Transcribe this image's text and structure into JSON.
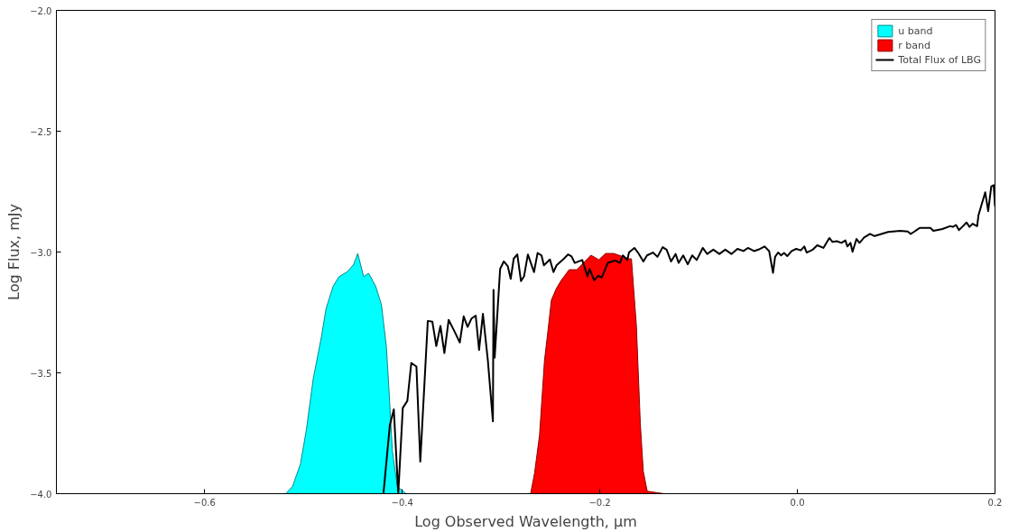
{
  "chart_data": {
    "type": "line",
    "xlabel": "Log Observed Wavelength, μm",
    "ylabel": "Log Flux, mJy",
    "xlim": [
      -0.75,
      0.2
    ],
    "ylim": [
      -4.0,
      -2.0
    ],
    "xticks": [
      {
        "value": -0.6,
        "label": "−0.6"
      },
      {
        "value": -0.4,
        "label": "−0.4"
      },
      {
        "value": -0.2,
        "label": "−0.2"
      },
      {
        "value": 0.0,
        "label": "0.0"
      },
      {
        "value": 0.2,
        "label": "0.2"
      }
    ],
    "yticks": [
      {
        "value": -4.0,
        "label": "−4.0"
      },
      {
        "value": -3.5,
        "label": "−3.5"
      },
      {
        "value": -3.0,
        "label": "−3.0"
      },
      {
        "value": -2.5,
        "label": "−2.5"
      },
      {
        "value": -2.0,
        "label": "−2.0"
      }
    ],
    "grid": false,
    "legend": "top right",
    "series": [
      {
        "name": "u band",
        "type": "area",
        "color": "#00ffff",
        "x": [
          -0.518,
          -0.511,
          -0.503,
          -0.497,
          -0.49,
          -0.482,
          -0.477,
          -0.47,
          -0.464,
          -0.455,
          -0.449,
          -0.445,
          -0.439,
          -0.434,
          -0.427,
          -0.421,
          -0.416,
          -0.413,
          -0.41,
          -0.405,
          -0.396
        ],
        "values": [
          -4.0,
          -3.97,
          -3.877,
          -3.736,
          -3.523,
          -3.356,
          -3.233,
          -3.143,
          -3.102,
          -3.08,
          -3.05,
          -3.006,
          -3.102,
          -3.088,
          -3.14,
          -3.218,
          -3.393,
          -3.598,
          -3.821,
          -3.97,
          -4.0
        ]
      },
      {
        "name": "r band",
        "type": "area",
        "color": "#ff0000",
        "x": [
          -0.27,
          -0.266,
          -0.261,
          -0.256,
          -0.253,
          -0.249,
          -0.244,
          -0.239,
          -0.231,
          -0.223,
          -0.217,
          -0.209,
          -0.201,
          -0.194,
          -0.186,
          -0.178,
          -0.17,
          -0.168,
          -0.163,
          -0.159,
          -0.156,
          -0.152,
          -0.135
        ],
        "values": [
          -4.0,
          -3.914,
          -3.758,
          -3.449,
          -3.345,
          -3.199,
          -3.151,
          -3.117,
          -3.073,
          -3.073,
          -3.047,
          -3.013,
          -3.032,
          -3.006,
          -3.006,
          -3.017,
          -3.028,
          -3.028,
          -3.304,
          -3.71,
          -3.907,
          -3.99,
          -4.0
        ]
      },
      {
        "name": "Total Flux of LBG",
        "color": "#000000",
        "x": [
          -0.419,
          -0.4125,
          -0.4085,
          -0.404,
          -0.3994,
          -0.3948,
          -0.3908,
          -0.3856,
          -0.3817,
          -0.3741,
          -0.3695,
          -0.3655,
          -0.3613,
          -0.3573,
          -0.353,
          -0.3475,
          -0.3417,
          -0.3378,
          -0.3338,
          -0.3298,
          -0.3256,
          -0.3222,
          -0.3183,
          -0.3133,
          -0.3082,
          -0.3076,
          -0.3064,
          -0.3009,
          -0.2972,
          -0.2932,
          -0.2902,
          -0.2871,
          -0.2835,
          -0.2798,
          -0.2767,
          -0.2728,
          -0.2666,
          -0.263,
          -0.259,
          -0.2566,
          -0.2505,
          -0.2469,
          -0.2438,
          -0.2377,
          -0.2322,
          -0.2286,
          -0.2254,
          -0.2178,
          -0.2124,
          -0.2103,
          -0.2057,
          -0.2016,
          -0.198,
          -0.1919,
          -0.1843,
          -0.1797,
          -0.1767,
          -0.1721,
          -0.1705,
          -0.165,
          -0.1614,
          -0.1559,
          -0.1522,
          -0.1462,
          -0.1416,
          -0.1364,
          -0.1324,
          -0.1279,
          -0.1233,
          -0.1202,
          -0.1156,
          -0.111,
          -0.1065,
          -0.1019,
          -0.0958,
          -0.0913,
          -0.0851,
          -0.079,
          -0.073,
          -0.0668,
          -0.0607,
          -0.0546,
          -0.0501,
          -0.0439,
          -0.0394,
          -0.0332,
          -0.0286,
          -0.0247,
          -0.0226,
          -0.0195,
          -0.0165,
          -0.0135,
          -0.0103,
          -0.0058,
          -0.0012,
          0.0034,
          0.007,
          0.0094,
          0.0156,
          0.0201,
          0.0263,
          0.0323,
          0.0354,
          0.04,
          0.0446,
          0.0485,
          0.0506,
          0.0537,
          0.0558,
          0.0598,
          0.0629,
          0.0675,
          0.0735,
          0.0781,
          0.0918,
          0.1041,
          0.1117,
          0.1147,
          0.1178,
          0.1238,
          0.1346,
          0.1376,
          0.1467,
          0.1544,
          0.1574,
          0.1605,
          0.1636,
          0.1712,
          0.1742,
          0.1773,
          0.1819,
          0.1833,
          0.1901,
          0.1931,
          0.1962,
          0.1986,
          0.2
        ],
        "values": [
          -4.0,
          -3.716,
          -3.651,
          -4.0,
          -3.645,
          -3.616,
          -3.459,
          -3.474,
          -3.867,
          -3.285,
          -3.288,
          -3.389,
          -3.306,
          -3.418,
          -3.281,
          -3.325,
          -3.374,
          -3.266,
          -3.31,
          -3.275,
          -3.263,
          -3.405,
          -3.256,
          -3.449,
          -3.701,
          -3.157,
          -3.437,
          -3.07,
          -3.039,
          -3.058,
          -3.111,
          -3.027,
          -3.01,
          -3.12,
          -3.101,
          -3.01,
          -3.083,
          -3.004,
          -3.014,
          -3.055,
          -3.031,
          -3.083,
          -3.055,
          -3.033,
          -3.01,
          -3.018,
          -3.045,
          -3.033,
          -3.101,
          -3.07,
          -3.117,
          -3.099,
          -3.105,
          -3.045,
          -3.035,
          -3.045,
          -3.014,
          -3.033,
          -3.002,
          -2.983,
          -3.002,
          -3.039,
          -3.014,
          -3.002,
          -3.02,
          -2.98,
          -2.99,
          -3.039,
          -3.008,
          -3.045,
          -3.014,
          -3.051,
          -3.014,
          -3.033,
          -2.983,
          -3.008,
          -2.99,
          -3.008,
          -2.99,
          -3.008,
          -2.987,
          -2.996,
          -2.983,
          -2.996,
          -2.99,
          -2.977,
          -2.996,
          -3.086,
          -3.02,
          -3.002,
          -3.014,
          -3.004,
          -3.017,
          -2.996,
          -2.987,
          -2.993,
          -2.977,
          -3.002,
          -2.99,
          -2.972,
          -2.983,
          -2.942,
          -2.958,
          -2.955,
          -2.962,
          -2.952,
          -2.977,
          -2.962,
          -2.999,
          -2.946,
          -2.962,
          -2.94,
          -2.925,
          -2.934,
          -2.917,
          -2.912,
          -2.915,
          -2.925,
          -2.917,
          -2.9,
          -2.9,
          -2.912,
          -2.905,
          -2.893,
          -2.896,
          -2.888,
          -2.909,
          -2.878,
          -2.896,
          -2.883,
          -2.893,
          -2.847,
          -2.753,
          -2.831,
          -2.729,
          -2.723,
          -2.809
        ]
      }
    ]
  }
}
